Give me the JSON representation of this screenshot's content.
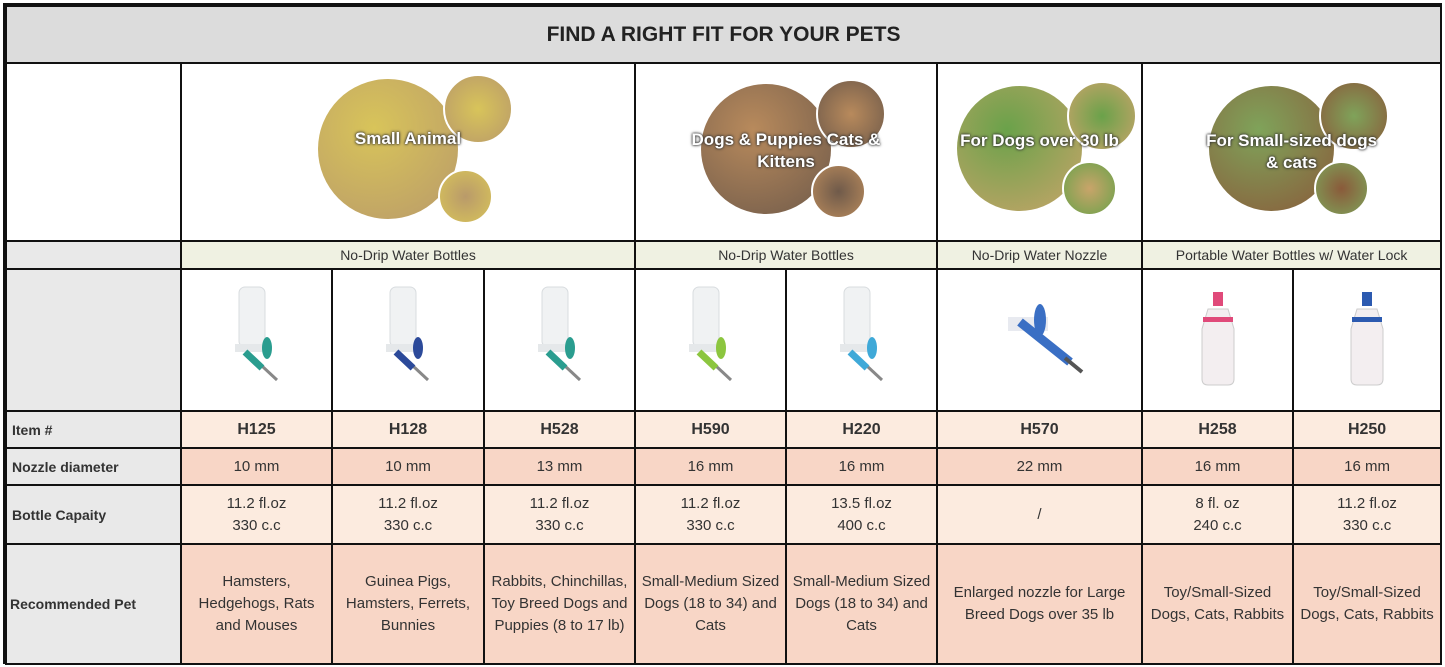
{
  "title": "FIND A RIGHT FIT FOR YOUR PETS",
  "heroes": [
    {
      "text": "Small Animal",
      "colors": [
        "#d8c45a",
        "#b99a6a"
      ]
    },
    {
      "text": "Dogs & Puppies Cats & Kittens",
      "colors": [
        "#b88a5c",
        "#6f5a4a"
      ]
    },
    {
      "text": "For Dogs over 30 lb",
      "colors": [
        "#6aa24a",
        "#c9a46a"
      ]
    },
    {
      "text": "For Small-sized dogs & cats",
      "colors": [
        "#7fa35a",
        "#8a5a3a"
      ]
    }
  ],
  "categories": [
    "No-Drip Water Bottles",
    "No-Drip Water Bottles",
    "No-Drip Water Nozzle",
    "Portable Water Bottles w/ Water Lock"
  ],
  "row_labels": {
    "item": "Item #",
    "nozzle": "Nozzle diameter",
    "capacity": "Bottle Capaity",
    "pet": "Recommended Pet"
  },
  "products": [
    {
      "item": "H125",
      "nozzle": "10 mm",
      "cap1": "11.2 fl.oz",
      "cap2": "330 c.c",
      "pet": "Hamsters, Hedgehogs, Rats and Mouses",
      "accent": "#2a9d8f"
    },
    {
      "item": "H128",
      "nozzle": "10 mm",
      "cap1": "11.2 fl.oz",
      "cap2": "330 c.c",
      "pet": "Guinea Pigs, Hamsters, Ferrets, Bunnies",
      "accent": "#2c4a9a"
    },
    {
      "item": "H528",
      "nozzle": "13 mm",
      "cap1": "11.2 fl.oz",
      "cap2": "330 c.c",
      "pet": "Rabbits, Chinchillas, Toy Breed Dogs and Puppies (8 to 17 lb)",
      "accent": "#2a9d8f"
    },
    {
      "item": "H590",
      "nozzle": "16 mm",
      "cap1": "11.2 fl.oz",
      "cap2": "330 c.c",
      "pet": "Small-Medium Sized Dogs  (18 to 34) and Cats",
      "accent": "#8cc63f"
    },
    {
      "item": "H220",
      "nozzle": "16 mm",
      "cap1": "13.5 fl.oz",
      "cap2": "400 c.c",
      "pet": "Small-Medium Sized Dogs  (18 to 34) and Cats",
      "accent": "#3fa9d8"
    },
    {
      "item": "H570",
      "nozzle": "22 mm",
      "cap1": "/",
      "cap2": "",
      "pet": "Enlarged nozzle for Large Breed Dogs over 35 lb",
      "accent": "#3a6fc4"
    },
    {
      "item": "H258",
      "nozzle": "16 mm",
      "cap1": "8 fl. oz",
      "cap2": "240 c.c",
      "pet": "Toy/Small-Sized Dogs, Cats, Rabbits",
      "accent": "#e04a7a"
    },
    {
      "item": "H250",
      "nozzle": "16 mm",
      "cap1": "11.2 fl.oz",
      "cap2": "330 c.c",
      "pet": "Toy/Small-Sized Dogs, Cats, Rabbits",
      "accent": "#2c5ab0"
    }
  ]
}
